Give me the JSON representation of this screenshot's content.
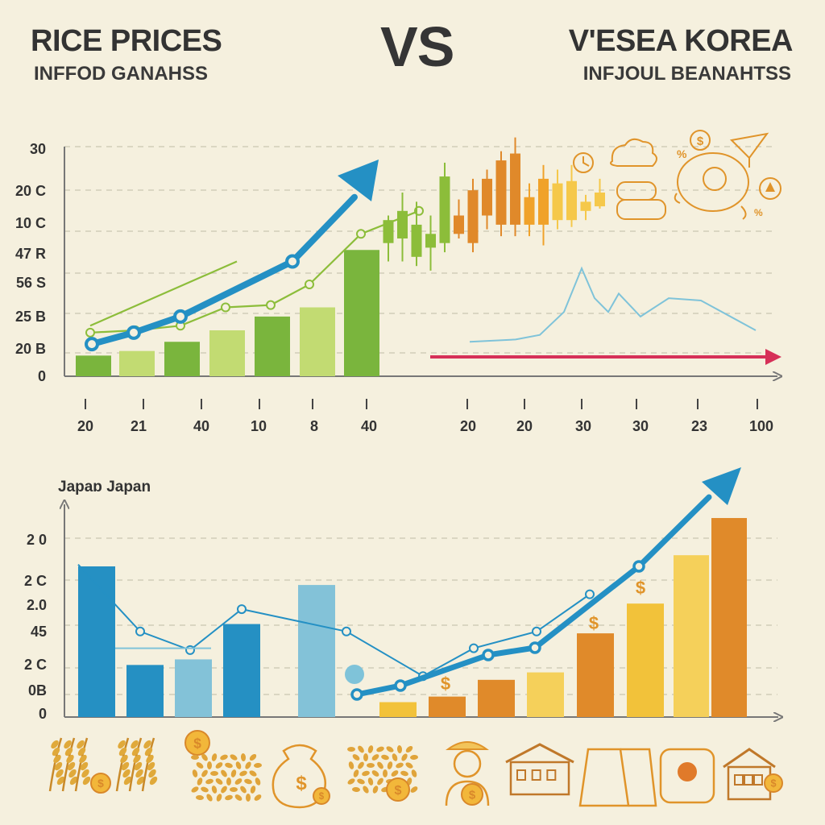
{
  "header": {
    "title_left": "RICE PRICES",
    "subtitle_left": "INFFOD GANAHSS",
    "vs": "VS",
    "title_right": "V'ESEA KOREA",
    "subtitle_right": "INFJOUL BEANAHTSS"
  },
  "colors": {
    "background": "#f5f0de",
    "axis": "#777777",
    "grid": "#c9c5b2",
    "blue_trend": "#2490c4",
    "green_line": "#8cbd3a",
    "red_arrow": "#d63058",
    "light_blue_line": "#7fc3d9",
    "icon_orange": "#e0942a"
  },
  "chart_data": [
    {
      "id": "top",
      "type": "bar",
      "y_tick_labels": [
        "30",
        "20 C",
        "10 C",
        "47 R",
        "56 S",
        "25 B",
        "20 B",
        "0"
      ],
      "x_tick_labels": [
        "20",
        "21",
        "40",
        "10",
        "8",
        "40",
        "20",
        "20",
        "30",
        "30",
        "23",
        "100"
      ],
      "grid": true,
      "bar_values": [
        0.09,
        0.11,
        0.15,
        0.2,
        0.26,
        0.3,
        0.55
      ],
      "bar_colors": [
        "#7ab53d",
        "#c2db72",
        "#7ab53d",
        "#c2db72",
        "#7ab53d",
        "#c2db72",
        "#7ab53d"
      ],
      "blue_trend_values": [
        0.14,
        0.19,
        0.26,
        0.5,
        0.78
      ],
      "green_line_values": [
        0.19,
        0.2,
        0.22,
        0.3,
        0.31,
        0.4,
        0.62,
        0.72
      ],
      "green_line2_values": [
        0.22,
        0.5
      ],
      "candlestick_values": [
        {
          "open": 0.58,
          "close": 0.68,
          "high": 0.7,
          "low": 0.5,
          "color": "#8cbd3a"
        },
        {
          "open": 0.6,
          "close": 0.72,
          "high": 0.8,
          "low": 0.5,
          "color": "#8cbd3a"
        },
        {
          "open": 0.52,
          "close": 0.66,
          "high": 0.76,
          "low": 0.48,
          "color": "#8cbd3a"
        },
        {
          "open": 0.56,
          "close": 0.62,
          "high": 0.7,
          "low": 0.46,
          "color": "#8cbd3a"
        },
        {
          "open": 0.58,
          "close": 0.87,
          "high": 0.93,
          "low": 0.54,
          "color": "#8cbd3a"
        },
        {
          "open": 0.62,
          "close": 0.7,
          "high": 0.77,
          "low": 0.6,
          "color": "#e0892a"
        },
        {
          "open": 0.58,
          "close": 0.81,
          "high": 0.86,
          "low": 0.54,
          "color": "#e0892a"
        },
        {
          "open": 0.7,
          "close": 0.86,
          "high": 0.9,
          "low": 0.64,
          "color": "#e0892a"
        },
        {
          "open": 0.66,
          "close": 0.94,
          "high": 0.98,
          "low": 0.61,
          "color": "#e0892a"
        },
        {
          "open": 0.66,
          "close": 0.97,
          "high": 1.04,
          "low": 0.61,
          "color": "#e0892a"
        },
        {
          "open": 0.66,
          "close": 0.78,
          "high": 0.84,
          "low": 0.61,
          "color": "#f0a22a"
        },
        {
          "open": 0.66,
          "close": 0.86,
          "high": 0.92,
          "low": 0.57,
          "color": "#f0a22a"
        },
        {
          "open": 0.68,
          "close": 0.84,
          "high": 0.9,
          "low": 0.64,
          "color": "#f5c84a"
        },
        {
          "open": 0.68,
          "close": 0.85,
          "high": 0.92,
          "low": 0.65,
          "color": "#f5c84a"
        },
        {
          "open": 0.72,
          "close": 0.76,
          "high": 0.79,
          "low": 0.68,
          "color": "#f5c84a"
        },
        {
          "open": 0.74,
          "close": 0.8,
          "high": 0.86,
          "low": 0.73,
          "color": "#f5c84a"
        }
      ],
      "light_blue_values": [
        0.15,
        0.16,
        0.18,
        0.28,
        0.47,
        0.34,
        0.28,
        0.36,
        0.26,
        0.34,
        0.33,
        0.2
      ],
      "red_arrow_value": 0.08
    },
    {
      "id": "bottom",
      "type": "bar",
      "title": "Japaɒ Japan",
      "y_tick_labels": [
        "2 0",
        "2 C",
        "2.0",
        "45",
        "2 C",
        "0B",
        "0"
      ],
      "grid": true,
      "bars": [
        {
          "value": 0.81,
          "color": "#2590c3"
        },
        {
          "value": 0.28,
          "color": "#2590c3"
        },
        {
          "value": 0.31,
          "color": "#83c2d8"
        },
        {
          "value": 0.5,
          "color": "#2590c3"
        },
        {
          "value": 0.71,
          "color": "#83c2d8"
        },
        {
          "value": 0.08,
          "color": "#f2c23a"
        },
        {
          "value": 0.11,
          "color": "#e08a2a"
        },
        {
          "value": 0.2,
          "color": "#e08a2a"
        },
        {
          "value": 0.24,
          "color": "#f5d05a"
        },
        {
          "value": 0.45,
          "color": "#e08a2a"
        },
        {
          "value": 0.61,
          "color": "#f2c23a"
        },
        {
          "value": 0.87,
          "color": "#f5d05a"
        },
        {
          "value": 1.07,
          "color": "#e08a2a"
        }
      ],
      "dollar_symbol": "$",
      "thin_blue_values": [
        0.82,
        0.46,
        0.36,
        0.58,
        0.46,
        0.22,
        0.37,
        0.46,
        0.66
      ],
      "flat_line_value": 0.37,
      "blue_trend_values": [
        0.12,
        0.18,
        0.25,
        0.31,
        0.33,
        0.64,
        0.81,
        1.27
      ]
    }
  ],
  "icon_rows": {
    "bottom_row": [
      "rice-stalk-icon",
      "rice-stalk-icon",
      "coin-icon",
      "rice-pile-icon",
      "money-bag-icon",
      "rice-pile-icon",
      "farmer-icon",
      "house-icon",
      "rice-sack-icon",
      "cash-register-icon",
      "house-icon"
    ],
    "top_right_cluster": [
      "clock-icon",
      "cloud-icon",
      "percent-icon",
      "coin-icon",
      "tray-icon",
      "piggy-bank-icon",
      "percent-icon",
      "warning-icon",
      "gear-icon"
    ]
  }
}
